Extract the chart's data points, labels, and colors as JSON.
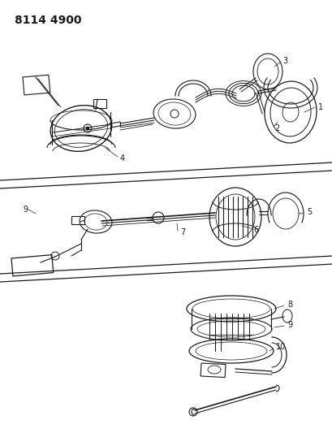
{
  "title": "8114 4900",
  "bg_color": "#ffffff",
  "line_color": "#1a1a1a",
  "figure_width": 4.1,
  "figure_height": 5.33,
  "dpi": 100
}
